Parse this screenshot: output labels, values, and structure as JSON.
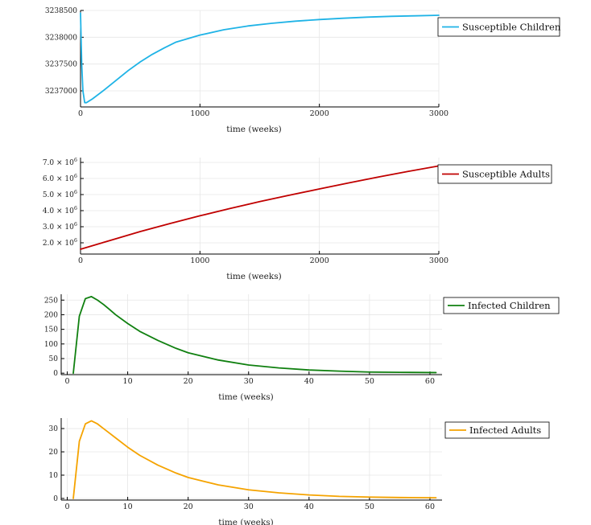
{
  "chart_data": [
    {
      "type": "line",
      "xlabel": "time (weeks)",
      "ylabel": "",
      "xlim": [
        0,
        3000
      ],
      "ylim": [
        3236700,
        3238500
      ],
      "x_ticks": [
        0,
        1000,
        2000,
        3000
      ],
      "x_tick_labels": [
        "0",
        "1000",
        "2000",
        "3000"
      ],
      "y_ticks": [
        3237000,
        3237500,
        3238000,
        3238500
      ],
      "y_tick_labels": [
        "3237000",
        "3237500",
        "3238000",
        "3238500"
      ],
      "legend_position": "top-right",
      "series": [
        {
          "name": "Susceptible Children",
          "color": "#1fb3e6",
          "x": [
            0,
            10,
            20,
            35,
            50,
            100,
            200,
            300,
            400,
            500,
            600,
            700,
            800,
            1000,
            1200,
            1400,
            1600,
            1800,
            2000,
            2200,
            2400,
            2600,
            2800,
            3000
          ],
          "y": [
            3238450,
            3237500,
            3237000,
            3236780,
            3236780,
            3236850,
            3237020,
            3237200,
            3237380,
            3237540,
            3237680,
            3237800,
            3237910,
            3238040,
            3238140,
            3238210,
            3238260,
            3238300,
            3238330,
            3238355,
            3238375,
            3238390,
            3238400,
            3238410
          ]
        }
      ]
    },
    {
      "type": "line",
      "xlabel": "time (weeks)",
      "ylabel": "",
      "xlim": [
        0,
        3000
      ],
      "ylim": [
        1300000,
        7300000
      ],
      "x_ticks": [
        0,
        1000,
        2000,
        3000
      ],
      "x_tick_labels": [
        "0",
        "1000",
        "2000",
        "3000"
      ],
      "y_ticks": [
        2000000,
        3000000,
        4000000,
        5000000,
        6000000,
        7000000
      ],
      "y_tick_labels": [
        {
          "base": "2.0 × 10",
          "exp": "6"
        },
        {
          "base": "3.0 × 10",
          "exp": "6"
        },
        {
          "base": "4.0 × 10",
          "exp": "6"
        },
        {
          "base": "5.0 × 10",
          "exp": "6"
        },
        {
          "base": "6.0 × 10",
          "exp": "6"
        },
        {
          "base": "7.0 × 10",
          "exp": "6"
        }
      ],
      "legend_position": "top-right",
      "series": [
        {
          "name": "Susceptible Adults",
          "color": "#c00000",
          "x": [
            0,
            250,
            500,
            750,
            1000,
            1250,
            1500,
            1750,
            2000,
            2250,
            2500,
            2750,
            3000
          ],
          "y": [
            1600000,
            2150000,
            2700000,
            3200000,
            3680000,
            4130000,
            4560000,
            4960000,
            5350000,
            5730000,
            6100000,
            6450000,
            6780000
          ]
        }
      ]
    },
    {
      "type": "line",
      "xlabel": "time (weeks)",
      "ylabel": "",
      "xlim": [
        -1,
        62
      ],
      "ylim": [
        -5,
        270
      ],
      "x_ticks": [
        0,
        10,
        20,
        30,
        40,
        50,
        60
      ],
      "x_tick_labels": [
        "0",
        "10",
        "20",
        "30",
        "40",
        "50",
        "60"
      ],
      "y_ticks": [
        0,
        50,
        100,
        150,
        200,
        250
      ],
      "y_tick_labels": [
        "0",
        "50",
        "100",
        "150",
        "200",
        "250"
      ],
      "legend_position": "top-right",
      "series": [
        {
          "name": "Infected Children",
          "color": "#108010",
          "x": [
            1,
            2,
            3,
            4,
            5,
            6,
            7,
            8,
            10,
            12,
            15,
            18,
            20,
            25,
            30,
            35,
            40,
            45,
            50,
            55,
            61
          ],
          "y": [
            0,
            195,
            255,
            262,
            250,
            235,
            218,
            200,
            170,
            143,
            112,
            85,
            70,
            45,
            28,
            18,
            11,
            7,
            4,
            3,
            2
          ]
        }
      ]
    },
    {
      "type": "line",
      "xlabel": "time (weeks)",
      "ylabel": "",
      "xlim": [
        -1,
        62
      ],
      "ylim": [
        -0.7,
        34.5
      ],
      "x_ticks": [
        0,
        10,
        20,
        30,
        40,
        50,
        60
      ],
      "x_tick_labels": [
        "0",
        "10",
        "20",
        "30",
        "40",
        "50",
        "60"
      ],
      "y_ticks": [
        0,
        10,
        20,
        30
      ],
      "y_tick_labels": [
        "0",
        "10",
        "20",
        "30"
      ],
      "legend_position": "top-right",
      "series": [
        {
          "name": "Infected Adults",
          "color": "#f5a300",
          "x": [
            1,
            2,
            3,
            4,
            5,
            6,
            7,
            8,
            10,
            12,
            15,
            18,
            20,
            25,
            30,
            35,
            40,
            45,
            50,
            55,
            61
          ],
          "y": [
            0,
            24.5,
            32,
            33.3,
            32,
            30,
            28,
            26,
            22,
            18.5,
            14.3,
            10.9,
            9,
            5.8,
            3.7,
            2.4,
            1.5,
            0.9,
            0.6,
            0.4,
            0.3
          ]
        }
      ]
    }
  ]
}
